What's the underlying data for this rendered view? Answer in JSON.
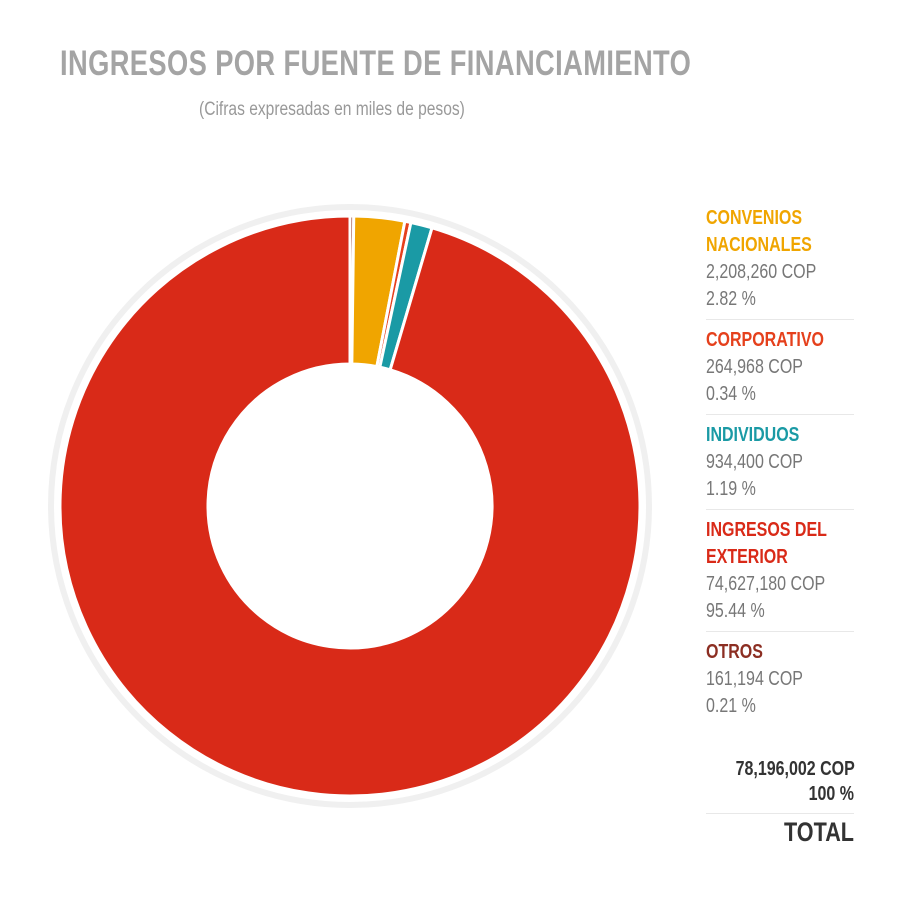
{
  "title": "INGRESOS POR FUENTE DE FINANCIAMIENTO",
  "subtitle": "(Cifras expresadas en miles de pesos)",
  "chart_data": {
    "type": "pie",
    "donut": true,
    "title": "INGRESOS POR FUENTE DE FINANCIAMIENTO",
    "subtitle": "(Cifras expresadas en miles de pesos)",
    "legend_position": "right",
    "slices": [
      {
        "label": "CONVENIOS NACIONALES",
        "value_text": "2,208,260 COP",
        "percent_text": "2.82 %",
        "value": 2208260,
        "percent": 2.82,
        "color": "#f0a500"
      },
      {
        "label": "CORPORATIVO",
        "value_text": "264,968 COP",
        "percent_text": "0.34 %",
        "value": 264968,
        "percent": 0.34,
        "color": "#e5401c"
      },
      {
        "label": "INDIVIDUOS",
        "value_text": "934,400 COP",
        "percent_text": "1.19 %",
        "value": 934400,
        "percent": 1.19,
        "color": "#1a9aa5"
      },
      {
        "label": "INGRESOS DEL EXTERIOR",
        "value_text": "74,627,180 COP",
        "percent_text": "95.44 %",
        "value": 74627180,
        "percent": 95.44,
        "color": "#d92a18"
      },
      {
        "label": "OTROS",
        "value_text": "161,194 COP",
        "percent_text": "0.21 %",
        "value": 161194,
        "percent": 0.21,
        "color": "#8c2e22"
      }
    ],
    "total": {
      "value_text": "78,196,002 COP",
      "percent_text": "100 %",
      "label": "TOTAL",
      "value": 78196002,
      "percent": 100
    }
  }
}
